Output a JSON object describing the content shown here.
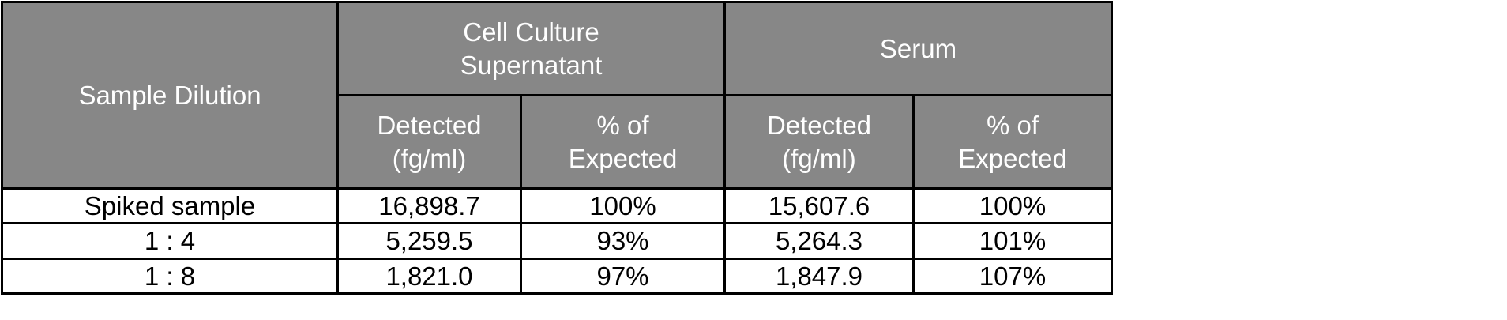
{
  "table": {
    "header": {
      "first": "Sample Dilution",
      "groups": [
        {
          "title": "Cell Culture Supernatant",
          "columns": [
            "Detected (fg/ml)",
            "% of Expected"
          ]
        },
        {
          "title": "Serum",
          "columns": [
            "Detected (fg/ml)",
            "% of Expected"
          ]
        }
      ]
    },
    "rows": [
      [
        "Spiked sample",
        "16,898.7",
        "100%",
        "15,607.6",
        "100%"
      ],
      [
        "1 : 4",
        "5,259.5",
        "93%",
        "5,264.3",
        "101%"
      ],
      [
        "1 : 8",
        "1,821.0",
        "97%",
        "1,847.9",
        "107%"
      ]
    ]
  }
}
